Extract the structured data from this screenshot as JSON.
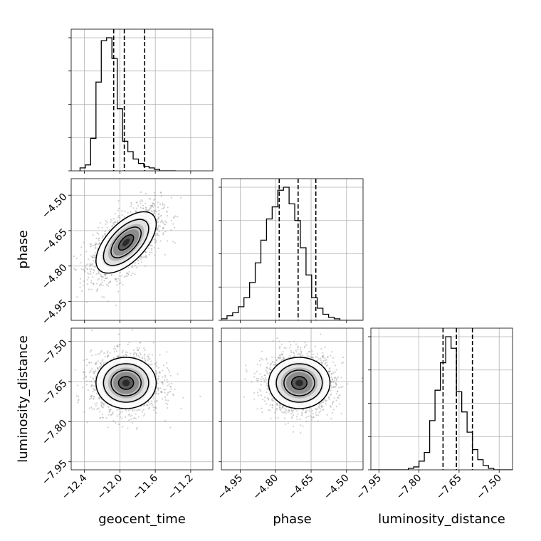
{
  "chart_data": {
    "type": "corner",
    "parameters": [
      "geocent_time",
      "phase",
      "luminosity_distance"
    ],
    "axis_labels": {
      "x": [
        "geocent_time",
        "phase",
        "luminosity_distance"
      ],
      "y": [
        "",
        "phase",
        "luminosity_distance"
      ]
    },
    "grid": true,
    "ranges": {
      "geocent_time": [
        -12.55,
        -10.95
      ],
      "phase": [
        -5.03,
        -4.43
      ],
      "luminosity_distance": [
        -7.98,
        -7.45
      ]
    },
    "ticks": {
      "geocent_time": [
        {
          "value": -12.4,
          "label": "−12.4"
        },
        {
          "value": -12.0,
          "label": "−12.0"
        },
        {
          "value": -11.6,
          "label": "−11.6"
        },
        {
          "value": -11.2,
          "label": "−11.2"
        }
      ],
      "phase": [
        {
          "value": -4.95,
          "label": "−4.95"
        },
        {
          "value": -4.8,
          "label": "−4.80"
        },
        {
          "value": -4.65,
          "label": "−4.65"
        },
        {
          "value": -4.5,
          "label": "−4.50"
        }
      ],
      "luminosity_distance": [
        {
          "value": -7.95,
          "label": "−7.95"
        },
        {
          "value": -7.8,
          "label": "−7.80"
        },
        {
          "value": -7.65,
          "label": "−7.65"
        },
        {
          "value": -7.5,
          "label": "−7.50"
        }
      ]
    },
    "quantiles": {
      "geocent_time": [
        -12.07,
        -11.95,
        -11.72
      ],
      "phase": [
        -4.785,
        -4.705,
        -4.63
      ],
      "luminosity_distance": [
        -7.71,
        -7.66,
        -7.6
      ]
    },
    "histograms": {
      "geocent_time": {
        "bin_start": -12.45,
        "bin_width": 0.06,
        "counts": [
          2,
          4,
          22,
          60,
          88,
          90,
          76,
          42,
          20,
          13,
          8,
          5,
          3,
          2,
          1,
          0,
          0,
          0
        ]
      },
      "phase": {
        "bin_start": -5.03,
        "bin_width": 0.0239,
        "counts": [
          1,
          3,
          5,
          9,
          15,
          25,
          38,
          53,
          67,
          75,
          86,
          88,
          77,
          66,
          48,
          30,
          15,
          8,
          4,
          2,
          1,
          0,
          0,
          0,
          0
        ]
      },
      "luminosity_distance": {
        "bin_start": -7.98,
        "bin_width": 0.02,
        "counts": [
          0,
          0,
          0,
          0,
          0,
          0,
          0,
          1,
          2,
          6,
          12,
          34,
          55,
          74,
          92,
          84,
          54,
          40,
          26,
          14,
          7,
          3,
          1,
          0,
          0,
          0,
          0
        ]
      }
    },
    "posterior": {
      "mean": {
        "geocent_time": -11.93,
        "phase": -4.7,
        "luminosity_distance": -7.655
      },
      "std": {
        "geocent_time": 0.17,
        "phase": 0.065,
        "luminosity_distance": 0.048
      },
      "correlation": {
        "geocent_time,phase": 0.6,
        "geocent_time,luminosity_distance": 0.0,
        "phase,luminosity_distance": 0.0
      }
    },
    "contour_levels_sigma": [
      0.5,
      1.0,
      1.5,
      2.0
    ]
  },
  "colors": {
    "line": "#000000",
    "grid": "#b0b0b0",
    "points": "#9a9a9a",
    "density": [
      "#e0e0e0",
      "#b8b8b8",
      "#8c8c8c",
      "#5a5a5a",
      "#2a2a2a"
    ]
  }
}
